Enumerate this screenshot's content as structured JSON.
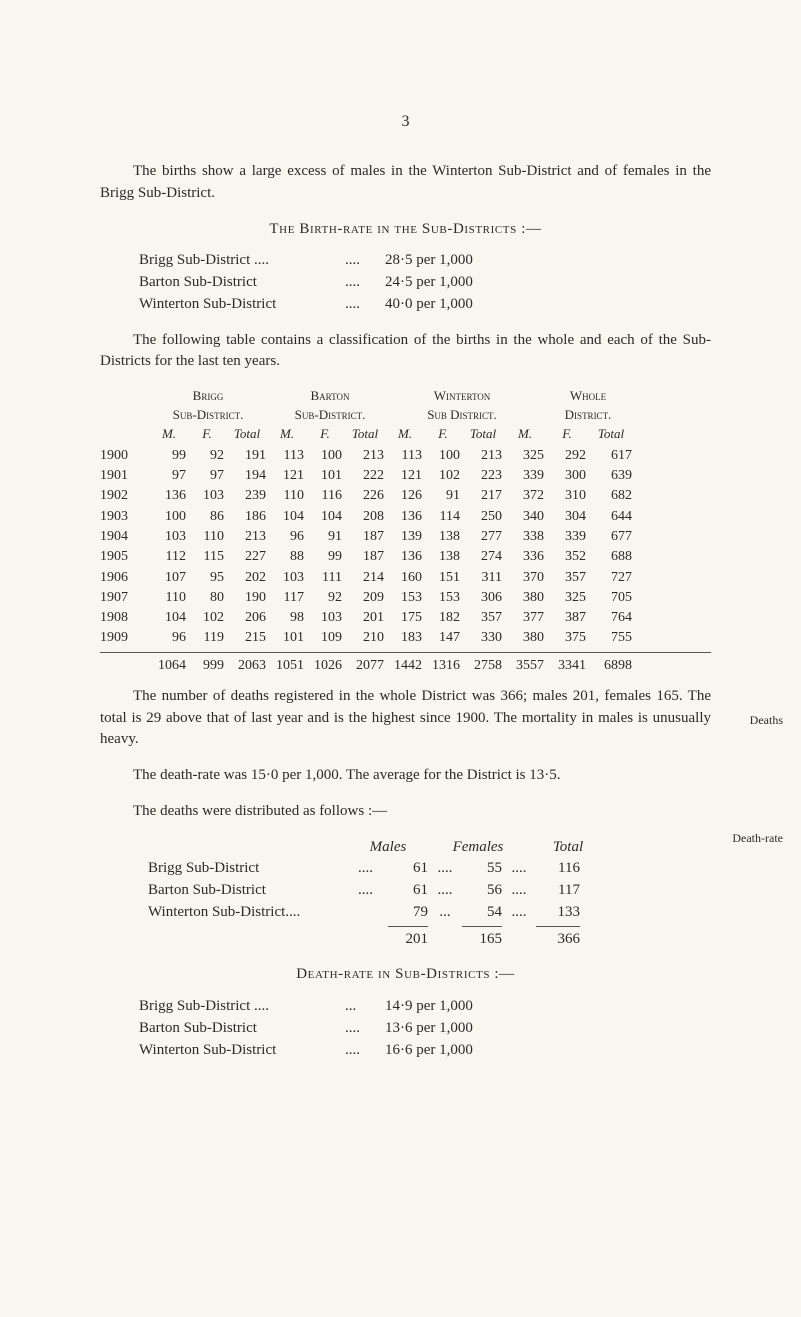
{
  "page_number": "3",
  "intro": "The births show a large excess of males in the Winterton Sub-District and of females in the Brigg Sub-District.",
  "birth_rate_heading": "The Birth-rate in the Sub-Districts :—",
  "birth_rates": [
    {
      "label": "Brigg Sub-District ....",
      "val": "28·5 per 1,000"
    },
    {
      "label": "Barton Sub-District",
      "val": "24·5 per 1,000"
    },
    {
      "label": "Winterton Sub-District",
      "val": "40·0 per 1,000"
    }
  ],
  "table_intro": "The following table contains a classification of the births in the whole and each of the Sub-Districts for the last ten years.",
  "groups": [
    {
      "top": "Brigg",
      "bottom": "Sub-District."
    },
    {
      "top": "Barton",
      "bottom": "Sub-District."
    },
    {
      "top": "Winterton",
      "bottom": "Sub District."
    },
    {
      "top": "Whole",
      "bottom": "District."
    }
  ],
  "colhdr": {
    "M": "M.",
    "F": "F.",
    "T": "Total"
  },
  "rows": [
    {
      "y": "1900",
      "bm": "99",
      "bf": "92",
      "bt": "191",
      "am": "113",
      "af": "100",
      "at": "213",
      "wm": "113",
      "wf": "100",
      "wt": "213",
      "tm": "325",
      "tf": "292",
      "tt": "617"
    },
    {
      "y": "1901",
      "bm": "97",
      "bf": "97",
      "bt": "194",
      "am": "121",
      "af": "101",
      "at": "222",
      "wm": "121",
      "wf": "102",
      "wt": "223",
      "tm": "339",
      "tf": "300",
      "tt": "639"
    },
    {
      "y": "1902",
      "bm": "136",
      "bf": "103",
      "bt": "239",
      "am": "110",
      "af": "116",
      "at": "226",
      "wm": "126",
      "wf": "91",
      "wt": "217",
      "tm": "372",
      "tf": "310",
      "tt": "682"
    },
    {
      "y": "1903",
      "bm": "100",
      "bf": "86",
      "bt": "186",
      "am": "104",
      "af": "104",
      "at": "208",
      "wm": "136",
      "wf": "114",
      "wt": "250",
      "tm": "340",
      "tf": "304",
      "tt": "644"
    },
    {
      "y": "1904",
      "bm": "103",
      "bf": "110",
      "bt": "213",
      "am": "96",
      "af": "91",
      "at": "187",
      "wm": "139",
      "wf": "138",
      "wt": "277",
      "tm": "338",
      "tf": "339",
      "tt": "677"
    },
    {
      "y": "1905",
      "bm": "112",
      "bf": "115",
      "bt": "227",
      "am": "88",
      "af": "99",
      "at": "187",
      "wm": "136",
      "wf": "138",
      "wt": "274",
      "tm": "336",
      "tf": "352",
      "tt": "688"
    },
    {
      "y": "1906",
      "bm": "107",
      "bf": "95",
      "bt": "202",
      "am": "103",
      "af": "111",
      "at": "214",
      "wm": "160",
      "wf": "151",
      "wt": "311",
      "tm": "370",
      "tf": "357",
      "tt": "727"
    },
    {
      "y": "1907",
      "bm": "110",
      "bf": "80",
      "bt": "190",
      "am": "117",
      "af": "92",
      "at": "209",
      "wm": "153",
      "wf": "153",
      "wt": "306",
      "tm": "380",
      "tf": "325",
      "tt": "705"
    },
    {
      "y": "1908",
      "bm": "104",
      "bf": "102",
      "bt": "206",
      "am": "98",
      "af": "103",
      "at": "201",
      "wm": "175",
      "wf": "182",
      "wt": "357",
      "tm": "377",
      "tf": "387",
      "tt": "764"
    },
    {
      "y": "1909",
      "bm": "96",
      "bf": "119",
      "bt": "215",
      "am": "101",
      "af": "109",
      "at": "210",
      "wm": "183",
      "wf": "147",
      "wt": "330",
      "tm": "380",
      "tf": "375",
      "tt": "755"
    }
  ],
  "totals": {
    "y": "",
    "bm": "1064",
    "bf": "999",
    "bt": "2063",
    "am": "1051",
    "af": "1026",
    "at": "2077",
    "wm": "1442",
    "wf": "1316",
    "wt": "2758",
    "tm": "3557",
    "tf": "3341",
    "tt": "6898"
  },
  "deaths_para": "The number of deaths registered in the whole District was 366; males 201, females 165. The total is 29 above that of last year and is the highest since 1900. The mortality in males is unusually heavy.",
  "margin_deaths": "Deaths",
  "deathrate_para": "The death-rate was 15·0 per 1,000. The average for the District is 13·5.",
  "margin_deathrate": "Death-rate",
  "dist_heading": "The deaths were distributed as follows :—",
  "dtab_hdr": {
    "m": "Males",
    "f": "Females",
    "t": "Total"
  },
  "dtab_rows": [
    {
      "l": "Brigg Sub-District",
      "d": "....",
      "m": "61",
      "s": "....",
      "f": "55",
      "s2": "....",
      "t": "116"
    },
    {
      "l": "Barton Sub-District",
      "d": "....",
      "m": "61",
      "s": "....",
      "f": "56",
      "s2": "....",
      "t": "117"
    },
    {
      "l": "Winterton Sub-District....",
      "d": "",
      "m": "79",
      "s": "...",
      "f": "54",
      "s2": "....",
      "t": "133"
    }
  ],
  "dtab_tot": {
    "m": "201",
    "f": "165",
    "t": "366"
  },
  "dr_heading": "Death-rate in Sub-Districts :—",
  "dr_rows": [
    {
      "label": "Brigg Sub-District ....",
      "val": "14·9 per 1,000"
    },
    {
      "label": "Barton Sub-District",
      "val": "13·6 per 1,000"
    },
    {
      "label": "Winterton Sub-District",
      "val": "16·6 per 1,000"
    }
  ]
}
